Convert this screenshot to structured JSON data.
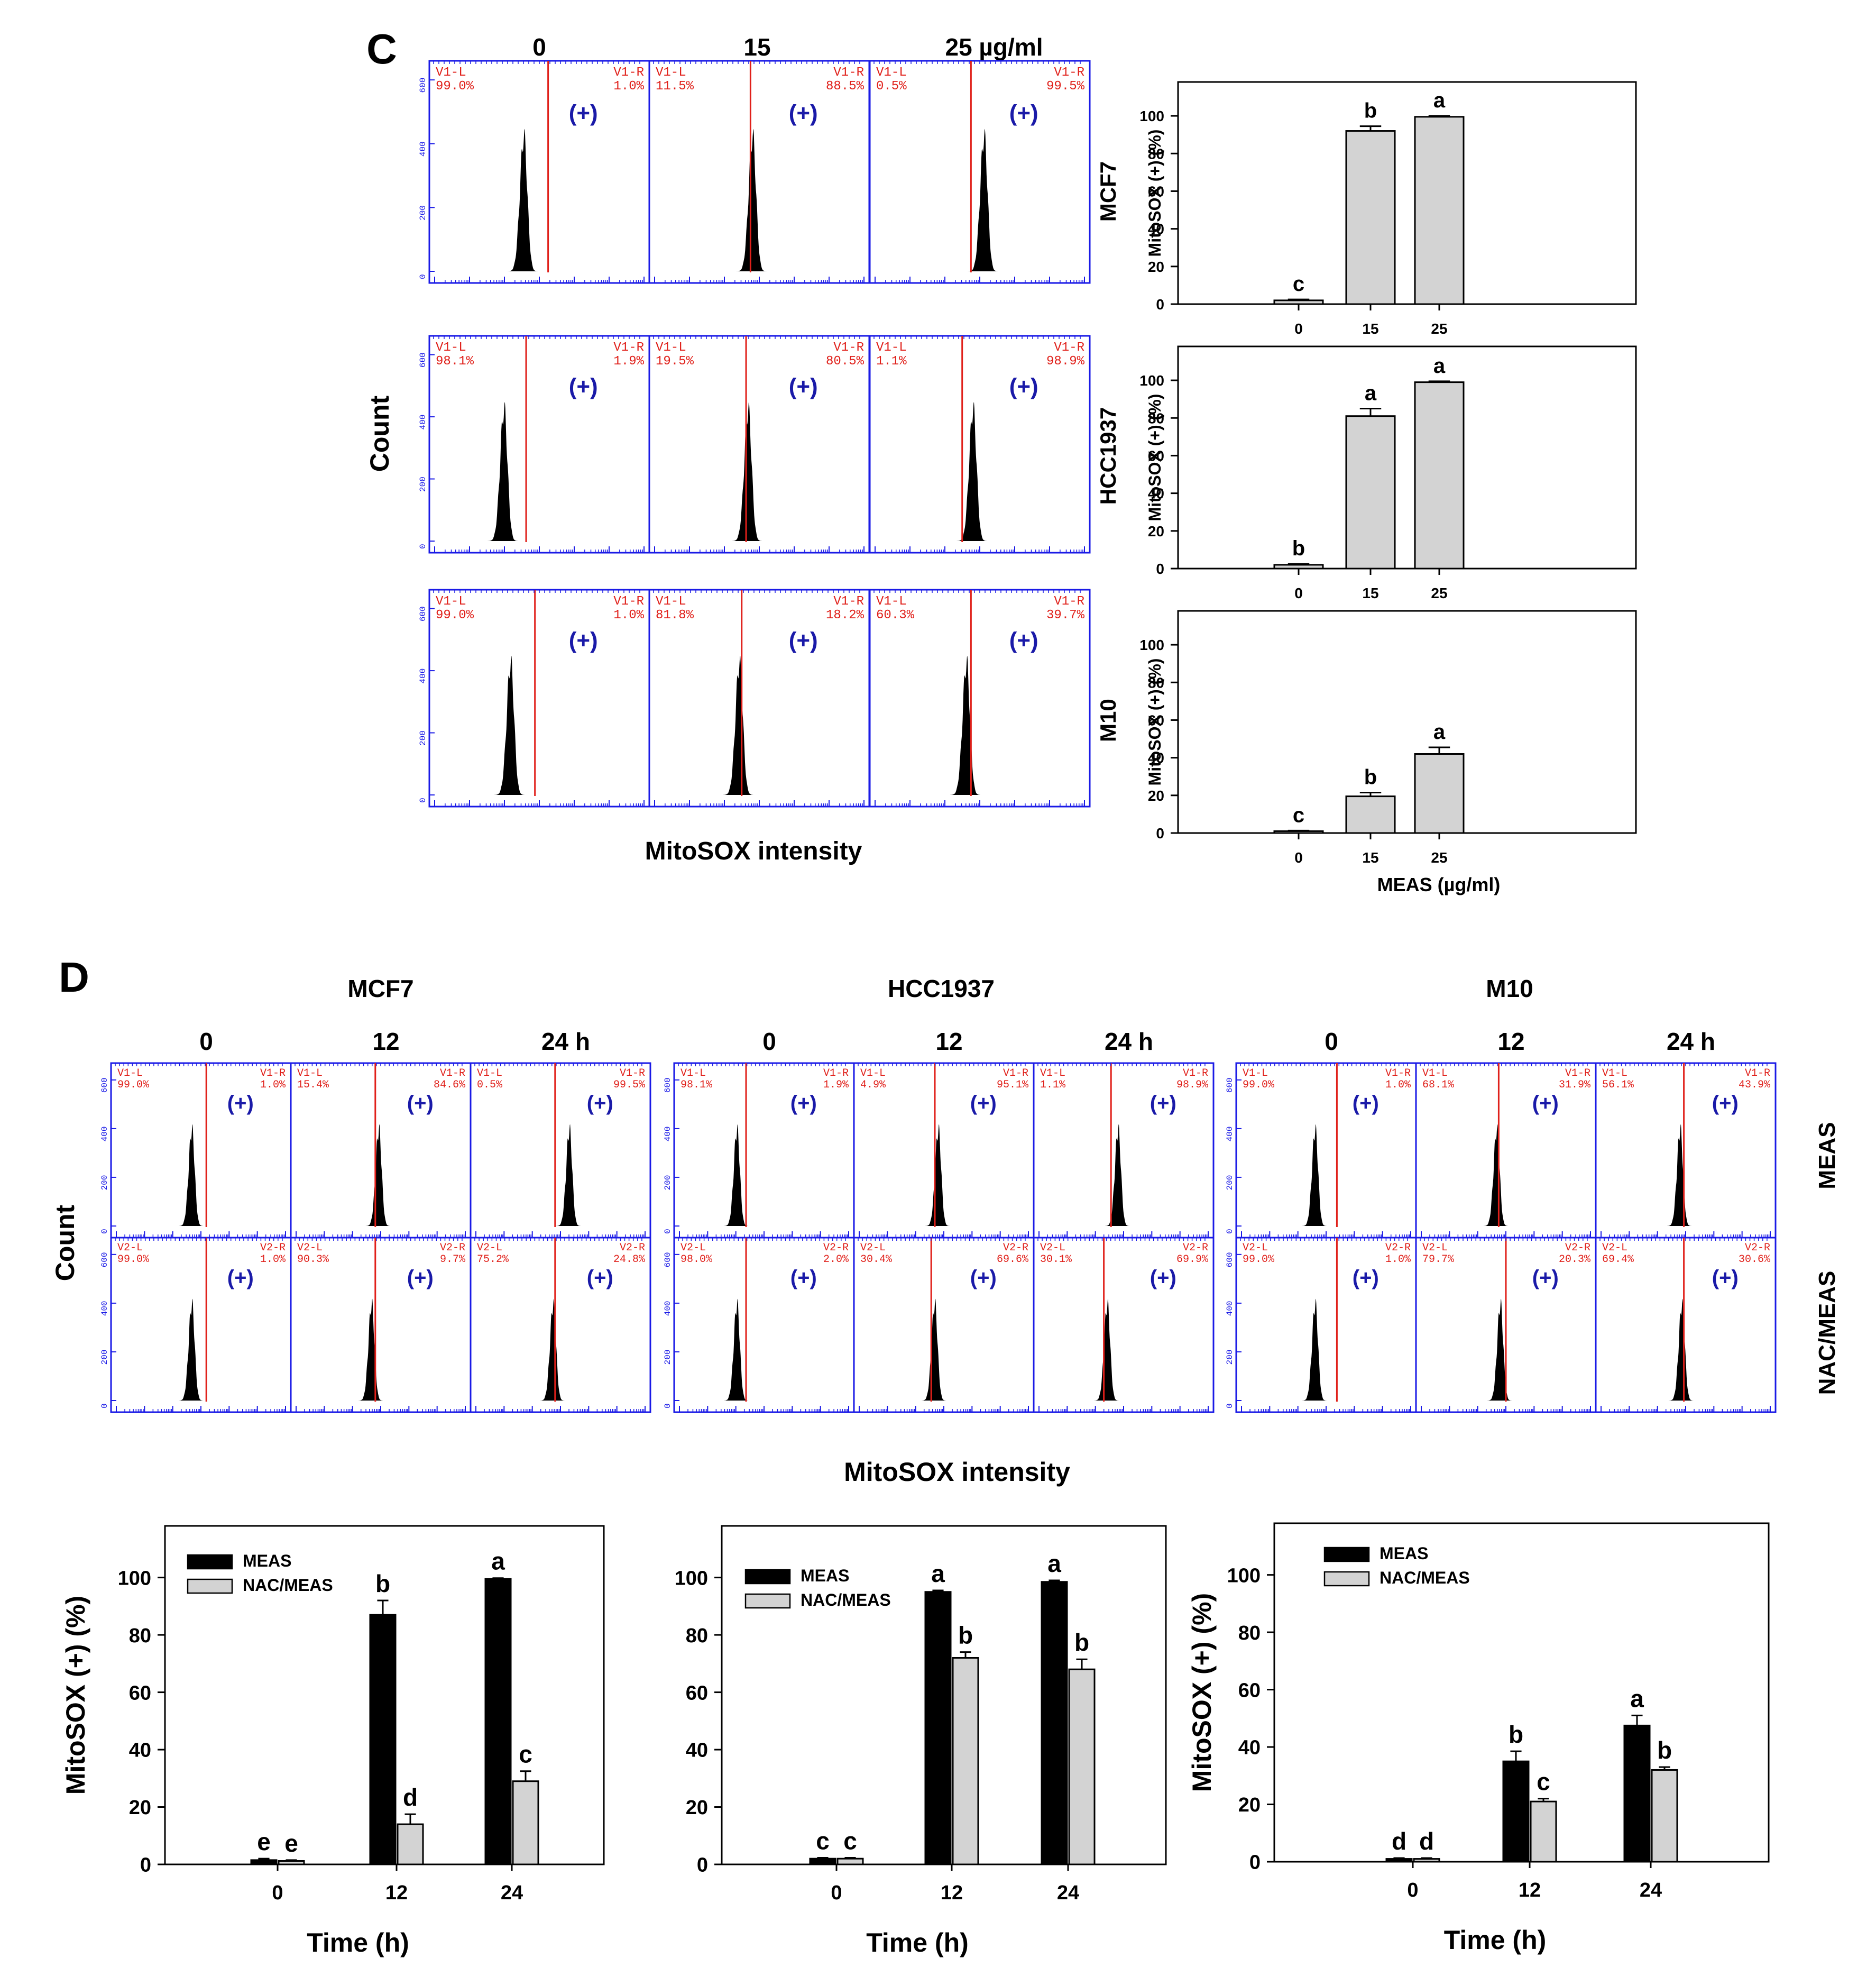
{
  "colors": {
    "histogram_fill": "#000000",
    "histogram_frame": "#1a1ae6",
    "gate": "#e0201a",
    "plus": "#1a1aa8",
    "bar_black": "#000000",
    "bar_gray": "#d3d3d3"
  },
  "panel_c": {
    "label": "C",
    "dose_headers": [
      "0",
      "15",
      "25 µg/ml"
    ],
    "y_axis_label": "Count",
    "x_axis_label": "MitoSOX intensity",
    "plus_label": "(+)",
    "gate_left_name": "V1-L",
    "gate_right_name": "V1-R",
    "rows": [
      {
        "cell": "MCF7",
        "gates": [
          {
            "l": "99.0%",
            "r": "1.0%"
          },
          {
            "l": "11.5%",
            "r": "88.5%"
          },
          {
            "l": "0.5%",
            "r": "99.5%"
          }
        ]
      },
      {
        "cell": "HCC1937",
        "gates": [
          {
            "l": "98.1%",
            "r": "1.9%"
          },
          {
            "l": "19.5%",
            "r": "80.5%"
          },
          {
            "l": "1.1%",
            "r": "98.9%"
          }
        ]
      },
      {
        "cell": "M10",
        "gates": [
          {
            "l": "99.0%",
            "r": "1.0%"
          },
          {
            "l": "81.8%",
            "r": "18.2%"
          },
          {
            "l": "60.3%",
            "r": "39.7%"
          }
        ]
      }
    ]
  },
  "panel_d": {
    "label": "D",
    "cell_lines": [
      "MCF7",
      "HCC1937",
      "M10"
    ],
    "time_headers": [
      "0",
      "12",
      "24 h"
    ],
    "y_axis_label": "Count",
    "x_axis_label": "MitoSOX intensity",
    "row_labels": [
      "MEAS",
      "NAC/MEAS"
    ],
    "plus_label": "(+)",
    "gates": {
      "MCF7": {
        "MEAS": [
          {
            "ln": "V1-L",
            "rn": "V1-R",
            "l": "99.0%",
            "r": "1.0%"
          },
          {
            "ln": "V1-L",
            "rn": "V1-R",
            "l": "15.4%",
            "r": "84.6%"
          },
          {
            "ln": "V1-L",
            "rn": "V1-R",
            "l": "0.5%",
            "r": "99.5%"
          }
        ],
        "NAC": [
          {
            "ln": "V2-L",
            "rn": "V2-R",
            "l": "99.0%",
            "r": "1.0%"
          },
          {
            "ln": "V2-L",
            "rn": "V2-R",
            "l": "90.3%",
            "r": "9.7%"
          },
          {
            "ln": "V2-L",
            "rn": "V2-R",
            "l": "75.2%",
            "r": "24.8%"
          }
        ]
      },
      "HCC1937": {
        "MEAS": [
          {
            "ln": "V1-L",
            "rn": "V1-R",
            "l": "98.1%",
            "r": "1.9%"
          },
          {
            "ln": "V1-L",
            "rn": "V1-R",
            "l": "4.9%",
            "r": "95.1%"
          },
          {
            "ln": "V1-L",
            "rn": "V1-R",
            "l": "1.1%",
            "r": "98.9%"
          }
        ],
        "NAC": [
          {
            "ln": "V2-L",
            "rn": "V2-R",
            "l": "98.0%",
            "r": "2.0%"
          },
          {
            "ln": "V2-L",
            "rn": "V2-R",
            "l": "30.4%",
            "r": "69.6%"
          },
          {
            "ln": "V2-L",
            "rn": "V2-R",
            "l": "30.1%",
            "r": "69.9%"
          }
        ]
      },
      "M10": {
        "MEAS": [
          {
            "ln": "V1-L",
            "rn": "V1-R",
            "l": "99.0%",
            "r": "1.0%"
          },
          {
            "ln": "V1-L",
            "rn": "V1-R",
            "l": "68.1%",
            "r": "31.9%"
          },
          {
            "ln": "V1-L",
            "rn": "V1-R",
            "l": "56.1%",
            "r": "43.9%"
          }
        ],
        "NAC": [
          {
            "ln": "V2-L",
            "rn": "V2-R",
            "l": "99.0%",
            "r": "1.0%"
          },
          {
            "ln": "V2-L",
            "rn": "V2-R",
            "l": "79.7%",
            "r": "20.3%"
          },
          {
            "ln": "V2-L",
            "rn": "V2-R",
            "l": "69.4%",
            "r": "30.6%"
          }
        ]
      }
    }
  },
  "chart_data": [
    {
      "type": "bar",
      "panel": "C",
      "cell_line": "MCF7",
      "categories": [
        "0",
        "15",
        "25"
      ],
      "values": [
        2,
        92,
        99.5
      ],
      "errors": [
        0.5,
        2.5,
        0.5
      ],
      "letters": [
        "c",
        "b",
        "a"
      ],
      "ylabel": "MitoSOX (+) (%)",
      "yticks": [
        "0",
        "20",
        "40",
        "60",
        "80",
        "100"
      ],
      "ylim": [
        0,
        118
      ]
    },
    {
      "type": "bar",
      "panel": "C",
      "cell_line": "HCC1937",
      "categories": [
        "0",
        "15",
        "25"
      ],
      "values": [
        2,
        81,
        99
      ],
      "errors": [
        0.5,
        4,
        0.5
      ],
      "letters": [
        "b",
        "a",
        "a"
      ],
      "ylabel": "MitoSOX (+) (%)",
      "yticks": [
        "0",
        "20",
        "40",
        "60",
        "80",
        "100"
      ],
      "ylim": [
        0,
        118
      ]
    },
    {
      "type": "bar",
      "panel": "C",
      "cell_line": "M10",
      "categories": [
        "0",
        "15",
        "25"
      ],
      "values": [
        1,
        19.5,
        42
      ],
      "errors": [
        0.3,
        2,
        3.5
      ],
      "letters": [
        "c",
        "b",
        "a"
      ],
      "ylabel": "MitoSOX (+) (%)",
      "yticks": [
        "0",
        "20",
        "40",
        "60",
        "80",
        "100"
      ],
      "ylim": [
        0,
        118
      ],
      "xlabel": "MEAS (µg/ml)"
    },
    {
      "type": "bar",
      "panel": "D",
      "cell_line": "MCF7",
      "categories": [
        "0",
        "12",
        "24"
      ],
      "series": [
        {
          "name": "MEAS",
          "values": [
            1.5,
            87,
            99.5
          ],
          "errors": [
            0.5,
            5,
            0.3
          ],
          "letters": [
            "e",
            "b",
            "a"
          ]
        },
        {
          "name": "NAC/MEAS",
          "values": [
            1.2,
            14,
            29
          ],
          "errors": [
            0.3,
            3.5,
            3.5
          ],
          "letters": [
            "e",
            "d",
            "c"
          ]
        }
      ],
      "ylabel": "MitoSOX (+) (%)",
      "xlabel": "Time (h)",
      "yticks": [
        "0",
        "20",
        "40",
        "60",
        "80",
        "100"
      ],
      "ylim": [
        0,
        118
      ]
    },
    {
      "type": "bar",
      "panel": "D",
      "cell_line": "HCC1937",
      "categories": [
        "0",
        "12",
        "24"
      ],
      "series": [
        {
          "name": "MEAS",
          "values": [
            2,
            95,
            98.5
          ],
          "errors": [
            0.3,
            0.5,
            0.5
          ],
          "letters": [
            "c",
            "a",
            "a"
          ]
        },
        {
          "name": "NAC/MEAS",
          "values": [
            2,
            72,
            68
          ],
          "errors": [
            0.3,
            2,
            3.5
          ],
          "letters": [
            "c",
            "b",
            "b"
          ]
        }
      ],
      "ylabel": "",
      "xlabel": "Time (h)",
      "yticks": [
        "0",
        "20",
        "40",
        "60",
        "80",
        "100"
      ],
      "ylim": [
        0,
        118
      ]
    },
    {
      "type": "bar",
      "panel": "D",
      "cell_line": "M10",
      "categories": [
        "0",
        "12",
        "24"
      ],
      "series": [
        {
          "name": "MEAS",
          "values": [
            1,
            35,
            47.5
          ],
          "errors": [
            0.3,
            3.5,
            3.5
          ],
          "letters": [
            "d",
            "b",
            "a"
          ]
        },
        {
          "name": "NAC/MEAS",
          "values": [
            1,
            21,
            32
          ],
          "errors": [
            0.3,
            1,
            1
          ],
          "letters": [
            "d",
            "c",
            "b"
          ]
        }
      ],
      "ylabel": "MitoSOX (+) (%)",
      "xlabel": "Time (h)",
      "yticks": [
        "0",
        "20",
        "40",
        "60",
        "80",
        "100"
      ],
      "ylim": [
        0,
        118
      ]
    }
  ]
}
